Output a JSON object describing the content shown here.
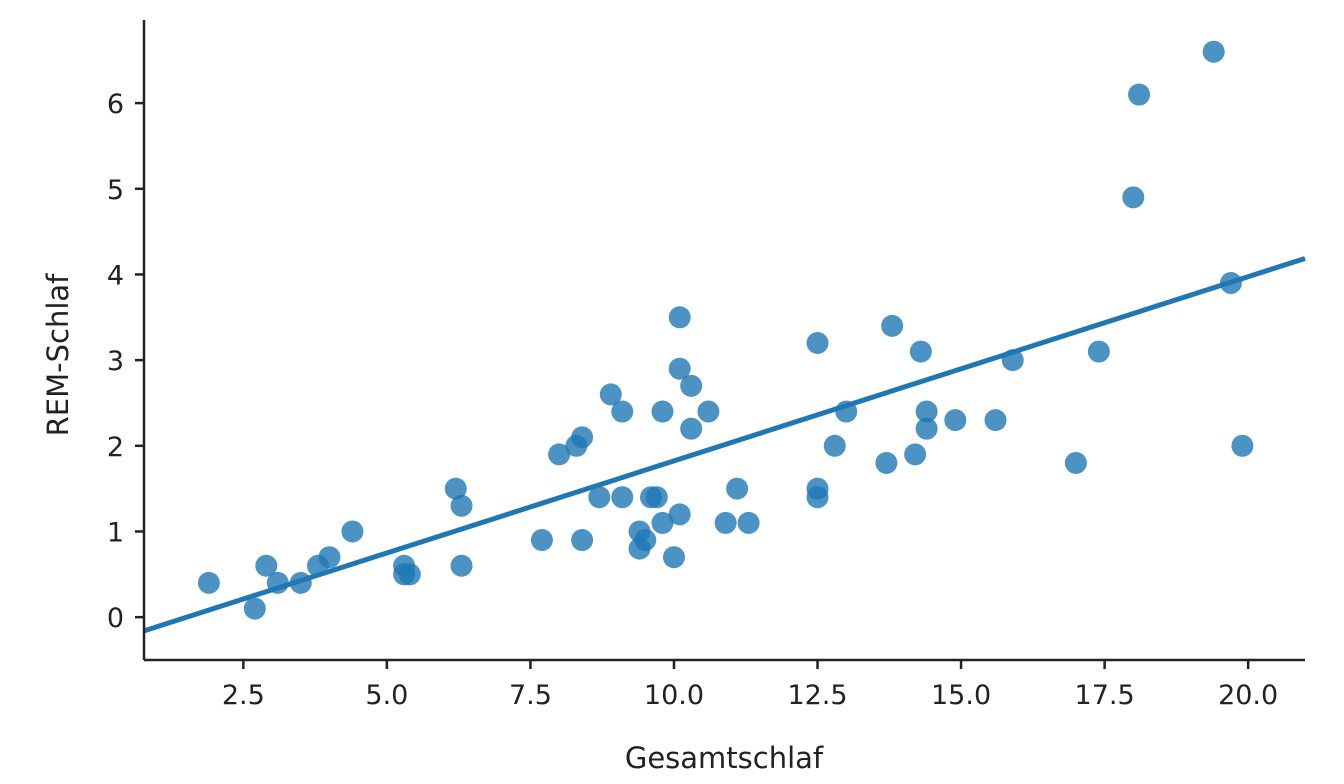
{
  "chart_data": {
    "type": "scatter",
    "title": "",
    "xlabel": "Gesamtschlaf",
    "ylabel": "REM-Schlaf",
    "xlim": [
      0.77,
      20.99
    ],
    "ylim": [
      -0.5,
      6.97
    ],
    "xticks": [
      "2.5",
      "5.0",
      "7.5",
      "10.0",
      "12.5",
      "15.0",
      "17.5",
      "20.0"
    ],
    "yticks": [
      "0",
      "1",
      "2",
      "3",
      "4",
      "5",
      "6"
    ],
    "grid": false,
    "color": "#1f77b4",
    "points": [
      [
        1.9,
        0.4
      ],
      [
        2.7,
        0.1
      ],
      [
        2.9,
        0.6
      ],
      [
        3.1,
        0.4
      ],
      [
        3.5,
        0.4
      ],
      [
        3.8,
        0.6
      ],
      [
        4.0,
        0.7
      ],
      [
        4.4,
        1.0
      ],
      [
        5.3,
        0.6
      ],
      [
        5.3,
        0.5
      ],
      [
        5.4,
        0.5
      ],
      [
        6.2,
        1.5
      ],
      [
        6.3,
        1.3
      ],
      [
        6.3,
        0.6
      ],
      [
        7.7,
        0.9
      ],
      [
        8.0,
        1.9
      ],
      [
        8.3,
        2.0
      ],
      [
        8.4,
        2.1
      ],
      [
        8.4,
        0.9
      ],
      [
        8.7,
        1.4
      ],
      [
        8.9,
        2.6
      ],
      [
        9.1,
        1.4
      ],
      [
        9.1,
        2.4
      ],
      [
        9.4,
        1.0
      ],
      [
        9.4,
        0.8
      ],
      [
        9.5,
        0.9
      ],
      [
        9.6,
        1.4
      ],
      [
        9.7,
        1.4
      ],
      [
        9.8,
        2.4
      ],
      [
        9.8,
        1.1
      ],
      [
        10.1,
        3.5
      ],
      [
        10.1,
        2.9
      ],
      [
        10.1,
        1.2
      ],
      [
        10.0,
        0.7
      ],
      [
        10.3,
        2.7
      ],
      [
        10.3,
        2.2
      ],
      [
        10.6,
        2.4
      ],
      [
        10.9,
        1.1
      ],
      [
        11.1,
        1.5
      ],
      [
        11.3,
        1.1
      ],
      [
        12.5,
        3.2
      ],
      [
        12.5,
        1.5
      ],
      [
        12.5,
        1.4
      ],
      [
        12.8,
        2.0
      ],
      [
        13.0,
        2.4
      ],
      [
        13.7,
        1.8
      ],
      [
        13.8,
        3.4
      ],
      [
        14.2,
        1.9
      ],
      [
        14.3,
        3.1
      ],
      [
        14.4,
        2.4
      ],
      [
        14.4,
        2.2
      ],
      [
        14.9,
        2.3
      ],
      [
        15.6,
        2.3
      ],
      [
        15.9,
        3.0
      ],
      [
        17.0,
        1.8
      ],
      [
        17.4,
        3.1
      ],
      [
        18.0,
        4.9
      ],
      [
        18.1,
        6.1
      ],
      [
        19.4,
        6.6
      ],
      [
        19.7,
        3.9
      ],
      [
        19.9,
        2.0
      ]
    ],
    "regression_line": {
      "slope": 0.215,
      "intercept": -0.326
    }
  }
}
